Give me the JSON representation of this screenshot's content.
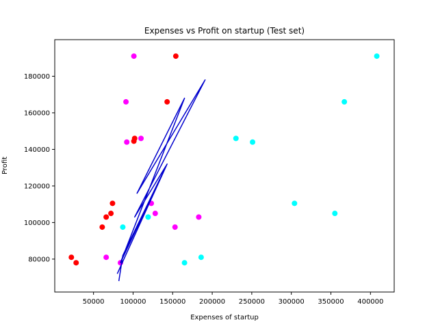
{
  "chart_data": {
    "type": "scatter",
    "title": "Expenses vs Profit on startup (Test set)",
    "xlabel": "Expenses of startup",
    "ylabel": "Profit",
    "xlim": [
      1000,
      430000
    ],
    "ylim": [
      62000,
      200000
    ],
    "xticks": [
      50000,
      100000,
      150000,
      200000,
      250000,
      300000,
      350000,
      400000
    ],
    "yticks": [
      80000,
      100000,
      120000,
      140000,
      160000,
      180000
    ],
    "grid": false,
    "legend": "none",
    "series": [
      {
        "color": "#ff0000",
        "marker": "circle",
        "points": [
          [
            22000,
            81000
          ],
          [
            28000,
            78000
          ],
          [
            61000,
            97500
          ],
          [
            66000,
            103000
          ],
          [
            72000,
            105000
          ],
          [
            74000,
            110500
          ],
          [
            101000,
            144500
          ],
          [
            102000,
            146000
          ],
          [
            143000,
            166000
          ],
          [
            154000,
            191000
          ]
        ]
      },
      {
        "color": "#00ffff",
        "marker": "circle",
        "points": [
          [
            87000,
            97500
          ],
          [
            119000,
            103000
          ],
          [
            165000,
            78000
          ],
          [
            186000,
            81000
          ],
          [
            230000,
            146000
          ],
          [
            251000,
            144000
          ],
          [
            304000,
            110500
          ],
          [
            355000,
            105000
          ],
          [
            367000,
            166000
          ],
          [
            408000,
            191000
          ]
        ]
      },
      {
        "color": "#ff00ff",
        "marker": "circle",
        "points": [
          [
            66000,
            81000
          ],
          [
            84000,
            78000
          ],
          [
            91000,
            166000
          ],
          [
            92000,
            144000
          ],
          [
            101000,
            191000
          ],
          [
            110000,
            146000
          ],
          [
            123000,
            110500
          ],
          [
            128000,
            105000
          ],
          [
            153000,
            97500
          ],
          [
            183000,
            103000
          ]
        ]
      },
      {
        "color": "#0000cd",
        "marker": "line",
        "points": [
          [
            82000,
            68000
          ],
          [
            87000,
            82000
          ],
          [
            143000,
            132000
          ],
          [
            102000,
            103000
          ],
          [
            191000,
            178000
          ],
          [
            105000,
            116000
          ],
          [
            165000,
            168000
          ],
          [
            84000,
            78000
          ],
          [
            142000,
            131000
          ],
          [
            80000,
            72000
          ]
        ]
      }
    ]
  }
}
